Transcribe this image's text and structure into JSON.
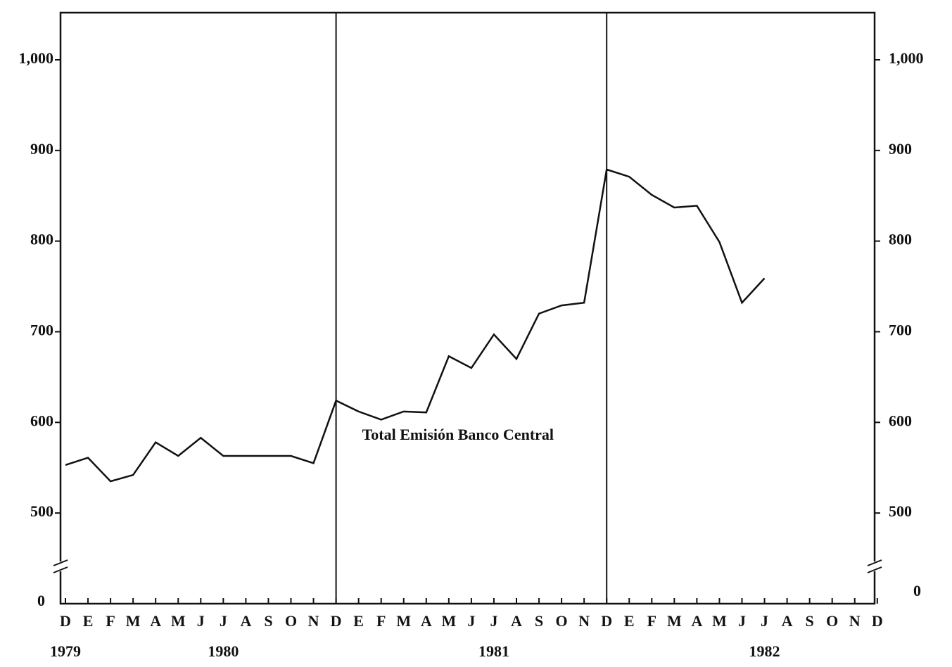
{
  "chart_data": {
    "type": "line",
    "categories": [
      "D",
      "E",
      "F",
      "M",
      "A",
      "M",
      "J",
      "J",
      "A",
      "S",
      "O",
      "N",
      "D",
      "E",
      "F",
      "M",
      "A",
      "M",
      "J",
      "J",
      "A",
      "S",
      "O",
      "N",
      "D",
      "E",
      "F",
      "M",
      "A",
      "M",
      "J",
      "J",
      "A",
      "S",
      "O",
      "N",
      "D"
    ],
    "years": [
      "1979",
      "1980",
      "1981",
      "1982"
    ],
    "series": [
      {
        "name": "Total Emisión Banco Central",
        "color": "#111111",
        "values": [
          553,
          561,
          535,
          542,
          578,
          563,
          583,
          563,
          563,
          563,
          563,
          555,
          624,
          612,
          603,
          612,
          611,
          673,
          660,
          697,
          670,
          720,
          729,
          732,
          879,
          871,
          851,
          837,
          839,
          799,
          732,
          759,
          null,
          null,
          null,
          null,
          null
        ]
      }
    ],
    "ylim": [
      400,
      1052
    ],
    "yticks": [
      500,
      600,
      700,
      800,
      900,
      {
        "value": 1000,
        "label": "1,000"
      }
    ],
    "y2lim": [
      400,
      1052
    ],
    "y2ticks": [
      500,
      600,
      700,
      800,
      900,
      {
        "value": 1000,
        "label": "1,000"
      }
    ],
    "axis_break_label": "0"
  }
}
